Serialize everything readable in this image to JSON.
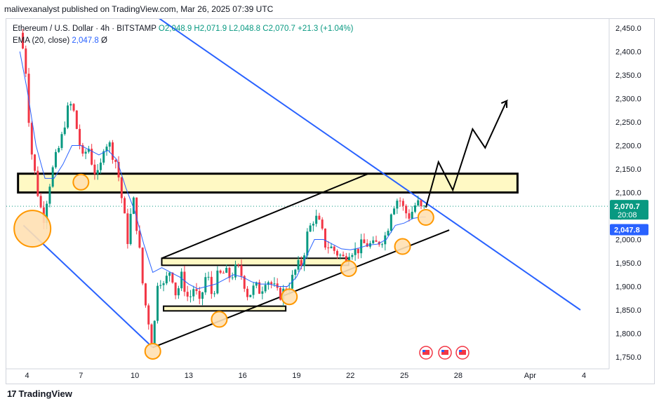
{
  "header": {
    "publisher_line": "malivexanalyst published on TradingView.com, Mar 26, 2025 07:39 UTC"
  },
  "legend": {
    "symbol": "Ethereum / U.S. Dollar · 4h · BITSTAMP",
    "ohlc": "O2,048.9 H2,071.9 L2,048.8 C2,070.7 +21.3 (+1.04%)",
    "ema_label": "EMA (20, close)",
    "ema_value": "2,047.8",
    "ema_suffix": "Ø"
  },
  "footer": {
    "brand": "TradingView",
    "logo_text": "17"
  },
  "price_labels": {
    "last_price": "2,070.7",
    "countdown": "20:08",
    "ema_price": "2,047.8"
  },
  "colors": {
    "up": "#089981",
    "down": "#f23645",
    "ema": "#2962ff",
    "trendline_blue": "#2962ff",
    "zone_fill": "#fff9c4",
    "circle_fill": "#ffe0b2",
    "circle_stroke": "#ff9800",
    "price_tag": "#089981",
    "ema_tag": "#2962ff"
  },
  "icons": [
    "event-flag-icon",
    "event-flag-icon",
    "event-flag-icon"
  ],
  "chart_data": {
    "type": "candlestick",
    "title": "Ethereum / U.S. Dollar · 4h · BITSTAMP",
    "y_axis": {
      "range": [
        1725,
        2475
      ],
      "ticks": [
        {
          "value": 2450,
          "label": "2,450.0"
        },
        {
          "value": 2400,
          "label": "2,400.0"
        },
        {
          "value": 2350,
          "label": "2,350.0"
        },
        {
          "value": 2300,
          "label": "2,300.0"
        },
        {
          "value": 2250,
          "label": "2,250.0"
        },
        {
          "value": 2200,
          "label": "2,200.0"
        },
        {
          "value": 2150,
          "label": "2,150.0"
        },
        {
          "value": 2100,
          "label": "2,100.0"
        },
        {
          "value": 2050,
          "label": "2,050.0"
        },
        {
          "value": 2000,
          "label": "2,000.0"
        },
        {
          "value": 1950,
          "label": "1,950.0"
        },
        {
          "value": 1900,
          "label": "1,900.0"
        },
        {
          "value": 1850,
          "label": "1,850.0"
        },
        {
          "value": 1800,
          "label": "1,800.0"
        },
        {
          "value": 1750,
          "label": "1,750.0"
        }
      ]
    },
    "x_axis": {
      "range_days": [
        3.5,
        35.2
      ],
      "ticks": [
        {
          "day": 4,
          "label": "4"
        },
        {
          "day": 7,
          "label": "7"
        },
        {
          "day": 10,
          "label": "10"
        },
        {
          "day": 13,
          "label": "13"
        },
        {
          "day": 16,
          "label": "16"
        },
        {
          "day": 19,
          "label": "19"
        },
        {
          "day": 22,
          "label": "22"
        },
        {
          "day": 25,
          "label": "25"
        },
        {
          "day": 28,
          "label": "28"
        },
        {
          "day": 32,
          "label": "Apr"
        },
        {
          "day": 35,
          "label": "4"
        }
      ]
    },
    "close_path": [
      [
        3.6,
        2440
      ],
      [
        3.9,
        2380
      ],
      [
        4.2,
        2200
      ],
      [
        4.6,
        2100
      ],
      [
        4.9,
        2040
      ],
      [
        5.2,
        2110
      ],
      [
        5.5,
        2160
      ],
      [
        5.9,
        2210
      ],
      [
        6.2,
        2270
      ],
      [
        6.5,
        2290
      ],
      [
        6.8,
        2230
      ],
      [
        7.1,
        2170
      ],
      [
        7.4,
        2200
      ],
      [
        7.7,
        2150
      ],
      [
        8.0,
        2130
      ],
      [
        8.3,
        2210
      ],
      [
        8.6,
        2200
      ],
      [
        9.0,
        2160
      ],
      [
        9.3,
        2080
      ],
      [
        9.6,
        2000
      ],
      [
        9.9,
        2090
      ],
      [
        10.2,
        2000
      ],
      [
        10.5,
        1880
      ],
      [
        10.8,
        1820
      ],
      [
        11.0,
        1770
      ],
      [
        11.3,
        1930
      ],
      [
        11.6,
        1900
      ],
      [
        12.0,
        1940
      ],
      [
        12.3,
        1880
      ],
      [
        12.6,
        1920
      ],
      [
        13.0,
        1870
      ],
      [
        13.3,
        1900
      ],
      [
        13.6,
        1860
      ],
      [
        14.0,
        1930
      ],
      [
        14.3,
        1880
      ],
      [
        14.6,
        1920
      ],
      [
        15.0,
        1930
      ],
      [
        15.3,
        1920
      ],
      [
        15.7,
        1940
      ],
      [
        16.0,
        1920
      ],
      [
        16.3,
        1880
      ],
      [
        16.7,
        1900
      ],
      [
        17.0,
        1890
      ],
      [
        17.3,
        1920
      ],
      [
        17.7,
        1900
      ],
      [
        18.0,
        1880
      ],
      [
        18.3,
        1890
      ],
      [
        18.7,
        1910
      ],
      [
        19.0,
        1940
      ],
      [
        19.3,
        1950
      ],
      [
        19.6,
        2010
      ],
      [
        20.0,
        2050
      ],
      [
        20.3,
        2030
      ],
      [
        20.6,
        1990
      ],
      [
        21.0,
        1980
      ],
      [
        21.3,
        1970
      ],
      [
        21.6,
        1960
      ],
      [
        22.0,
        1980
      ],
      [
        22.3,
        1975
      ],
      [
        22.7,
        1990
      ],
      [
        23.0,
        1990
      ],
      [
        23.3,
        1985
      ],
      [
        23.7,
        2000
      ],
      [
        24.0,
        2010
      ],
      [
        24.3,
        2070
      ],
      [
        24.7,
        2090
      ],
      [
        25.0,
        2060
      ],
      [
        25.3,
        2050
      ],
      [
        25.7,
        2080
      ],
      [
        26.0,
        2060
      ],
      [
        26.2,
        2070
      ]
    ],
    "ema_path": [
      [
        3.6,
        2400
      ],
      [
        4.0,
        2320
      ],
      [
        4.5,
        2200
      ],
      [
        5.0,
        2130
      ],
      [
        5.5,
        2130
      ],
      [
        6.0,
        2160
      ],
      [
        6.5,
        2200
      ],
      [
        7.0,
        2200
      ],
      [
        7.5,
        2190
      ],
      [
        8.0,
        2180
      ],
      [
        8.5,
        2190
      ],
      [
        9.0,
        2170
      ],
      [
        9.5,
        2110
      ],
      [
        10.0,
        2060
      ],
      [
        10.5,
        1990
      ],
      [
        11.0,
        1930
      ],
      [
        11.5,
        1940
      ],
      [
        12.0,
        1930
      ],
      [
        12.5,
        1920
      ],
      [
        13.0,
        1905
      ],
      [
        13.5,
        1895
      ],
      [
        14.0,
        1900
      ],
      [
        14.5,
        1905
      ],
      [
        15.0,
        1915
      ],
      [
        15.5,
        1925
      ],
      [
        16.0,
        1920
      ],
      [
        16.5,
        1910
      ],
      [
        17.0,
        1905
      ],
      [
        17.5,
        1905
      ],
      [
        18.0,
        1900
      ],
      [
        18.5,
        1900
      ],
      [
        19.0,
        1920
      ],
      [
        19.5,
        1960
      ],
      [
        20.0,
        2000
      ],
      [
        20.5,
        2000
      ],
      [
        21.0,
        1990
      ],
      [
        21.5,
        1980
      ],
      [
        22.0,
        1978
      ],
      [
        22.5,
        1982
      ],
      [
        23.0,
        1988
      ],
      [
        23.5,
        1990
      ],
      [
        24.0,
        2000
      ],
      [
        24.5,
        2030
      ],
      [
        25.0,
        2035
      ],
      [
        25.5,
        2045
      ],
      [
        26.0,
        2048
      ],
      [
        26.2,
        2047.8
      ]
    ],
    "current_price": 2070.7,
    "ema_current": 2047.8,
    "resistance_zone": {
      "from_day": 3.5,
      "to_day": 31.3,
      "low": 2100,
      "high": 2140
    },
    "small_zones": [
      {
        "from_day": 11.5,
        "to_day": 21.9,
        "low": 1945,
        "high": 1960
      },
      {
        "from_day": 11.6,
        "to_day": 18.4,
        "low": 1848,
        "high": 1858
      }
    ],
    "trendlines": [
      {
        "role": "descending-resistance",
        "color": "blue",
        "from": [
          11.0,
          2480
        ],
        "to": [
          34.8,
          1850
        ]
      },
      {
        "role": "lower-support",
        "color": "blue",
        "from": [
          3.8,
          2030
        ],
        "to": [
          11.0,
          1770
        ]
      },
      {
        "role": "channel-lower",
        "color": "black",
        "from": [
          11.0,
          1770
        ],
        "to": [
          27.5,
          2020
        ]
      },
      {
        "role": "channel-upper",
        "color": "black",
        "from": [
          11.5,
          1960
        ],
        "to": [
          23.0,
          2140
        ]
      }
    ],
    "projection_path": [
      [
        26.2,
        2068
      ],
      [
        26.9,
        2165
      ],
      [
        27.7,
        2105
      ],
      [
        28.8,
        2235
      ],
      [
        29.5,
        2195
      ],
      [
        30.7,
        2295
      ],
      [
        30.4,
        2290
      ],
      [
        30.7,
        2295
      ],
      [
        30.7,
        2280
      ]
    ],
    "highlight_points": [
      {
        "day": 4.3,
        "price": 2023,
        "size": "large"
      },
      {
        "day": 7.0,
        "price": 2122,
        "size": "small"
      },
      {
        "day": 11.0,
        "price": 1762,
        "size": "small"
      },
      {
        "day": 14.7,
        "price": 1830,
        "size": "small"
      },
      {
        "day": 18.6,
        "price": 1878,
        "size": "small"
      },
      {
        "day": 21.9,
        "price": 1938,
        "size": "small"
      },
      {
        "day": 24.9,
        "price": 1985,
        "size": "small"
      },
      {
        "day": 26.2,
        "price": 2047,
        "size": "small"
      }
    ],
    "grid": false,
    "legend": "top-left"
  }
}
